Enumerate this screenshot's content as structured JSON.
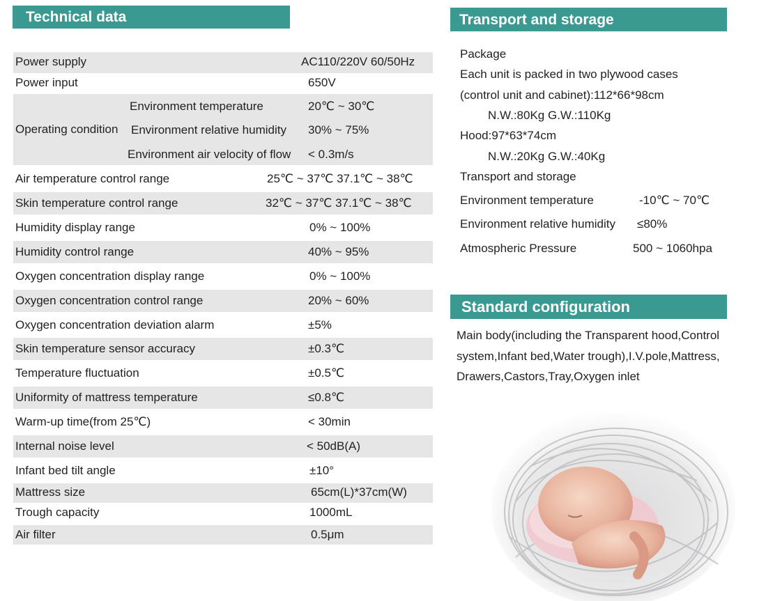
{
  "technical_data": {
    "title": "Technical data",
    "rows": [
      {
        "label": "Power supply",
        "value": "AC110/220V  60/50Hz"
      },
      {
        "label": "Power input",
        "value": "650V"
      },
      {
        "label": "Operating condition",
        "sub": [
          {
            "label": "Environment temperature",
            "value": "20℃ ~ 30℃"
          },
          {
            "label": "Environment relative humidity",
            "value": "30% ~ 75%"
          },
          {
            "label": "Environment air velocity of flow",
            "value": "< 0.3m/s"
          }
        ]
      },
      {
        "label": "Air temperature control range",
        "value": "25℃ ~ 37℃  37.1℃ ~ 38℃"
      },
      {
        "label": "Skin temperature control range",
        "value": "32℃ ~ 37℃  37.1℃ ~ 38℃"
      },
      {
        "label": "Humidity display range",
        "value": "0% ~ 100%"
      },
      {
        "label": "Humidity control range",
        "value": "40% ~ 95%"
      },
      {
        "label": "Oxygen concentration display range",
        "value": "0% ~ 100%"
      },
      {
        "label": "Oxygen concentration control range",
        "value": "20% ~ 60%"
      },
      {
        "label": "Oxygen concentration deviation alarm",
        "value": "±5%"
      },
      {
        "label": "Skin temperature sensor accuracy",
        "value": "±0.3℃"
      },
      {
        "label": "Temperature fluctuation",
        "value": "±0.5℃"
      },
      {
        "label": "Uniformity of mattress temperature",
        "value": "≤0.8℃"
      },
      {
        "label": "Warm-up time(from 25℃)",
        "value": "< 30min"
      },
      {
        "label": "Internal noise level",
        "value": "< 50dB(A)"
      },
      {
        "label": "Infant bed tilt angle",
        "value": "±10°"
      },
      {
        "label": "Mattress size",
        "value": "65cm(L)*37cm(W)"
      },
      {
        "label": "Trough capacity",
        "value": "1000mL"
      },
      {
        "label": "Air filter",
        "value": "0.5μm"
      }
    ]
  },
  "transport": {
    "title": "Transport and storage",
    "lines": [
      "Package",
      "Each unit is packed in two plywood cases",
      "(control unit and cabinet):112*66*98cm",
      "N.W.:80Kg   G.W.:110Kg",
      "Hood:97*63*74cm",
      "N.W.:20Kg   G.W.:40Kg",
      "Transport and storage"
    ],
    "conditions": [
      {
        "label": "Environment temperature",
        "value": "-10℃ ~ 70℃"
      },
      {
        "label": "Environment relative humidity",
        "value": "≤80%"
      },
      {
        "label": "Atmospheric Pressure",
        "value": "500 ~ 1060hpa"
      }
    ]
  },
  "config": {
    "title": "Standard configuration",
    "lines": [
      "Main body(including the Transparent hood,Control",
      "system,Infant bed,Water trough),I.V.pole,Mattress,",
      "Drawers,Castors,Tray,Oxygen inlet"
    ]
  }
}
